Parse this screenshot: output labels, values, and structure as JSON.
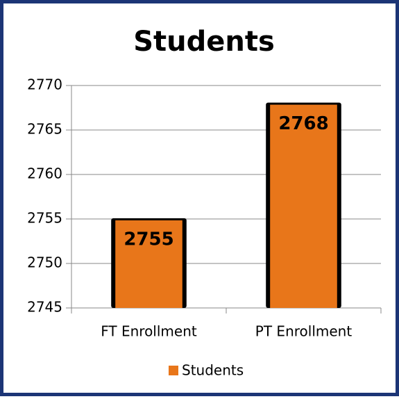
{
  "chart_data": {
    "type": "bar",
    "title": "Students",
    "categories": [
      "FT Enrollment",
      "PT Enrollment"
    ],
    "series": [
      {
        "name": "Students",
        "color": "#e8761a",
        "values": [
          2755,
          2768
        ]
      }
    ],
    "ylim": [
      2745,
      2770
    ],
    "yticks": [
      2745,
      2750,
      2755,
      2760,
      2765,
      2770
    ],
    "grid": true,
    "legend": "bottom"
  }
}
